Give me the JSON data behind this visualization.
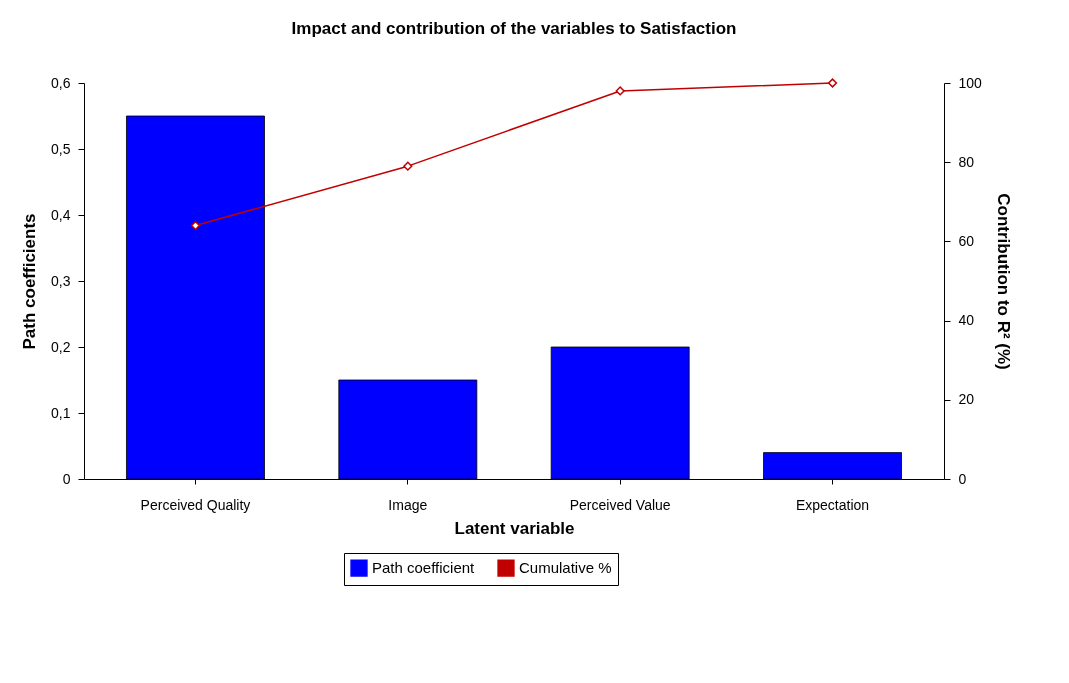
{
  "chart_data": {
    "type": "bar",
    "title": "Impact and contribution of the variables to Satisfaction",
    "xlabel": "Latent variable",
    "ylabel": "Path coefficients",
    "y2label": "Contribution to R² (%)",
    "categories": [
      "Perceived Quality",
      "Image",
      "Perceived Value",
      "Expectation"
    ],
    "series": [
      {
        "name": "Path coefficient",
        "color": "#0000ff",
        "values": [
          0.55,
          0.15,
          0.2,
          0.04
        ]
      },
      {
        "name": "Cumulative %",
        "type": "line",
        "axis": "y2",
        "color": "#c00000",
        "marker": "diamond",
        "values": [
          64,
          79,
          98,
          100
        ]
      }
    ],
    "ylim": [
      0,
      0.6
    ],
    "yticks": [
      0,
      {
        "value": 0.1,
        "label": "0,1"
      },
      {
        "value": 0.2,
        "label": "0,2"
      },
      {
        "value": 0.3,
        "label": "0,3"
      },
      {
        "value": 0.4,
        "label": "0,4"
      },
      {
        "value": 0.5,
        "label": "0,5"
      },
      {
        "value": 0.6,
        "label": "0,6"
      }
    ],
    "y2lim": [
      0,
      100
    ],
    "y2ticks": [
      0,
      20,
      40,
      60,
      80,
      100
    ],
    "legend": "bottom",
    "grid": false
  }
}
